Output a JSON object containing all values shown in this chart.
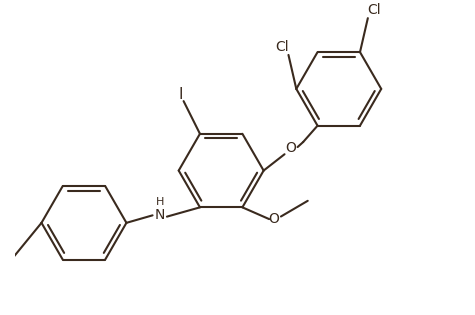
{
  "line_color": "#3a2a1e",
  "bg_color": "#ffffff",
  "lw": 1.5,
  "dbo": 0.07,
  "fs": 10,
  "figsize": [
    4.75,
    3.15
  ],
  "dpi": 100,
  "xlim": [
    -2.6,
    4.2
  ],
  "ylim": [
    -2.2,
    2.6
  ]
}
